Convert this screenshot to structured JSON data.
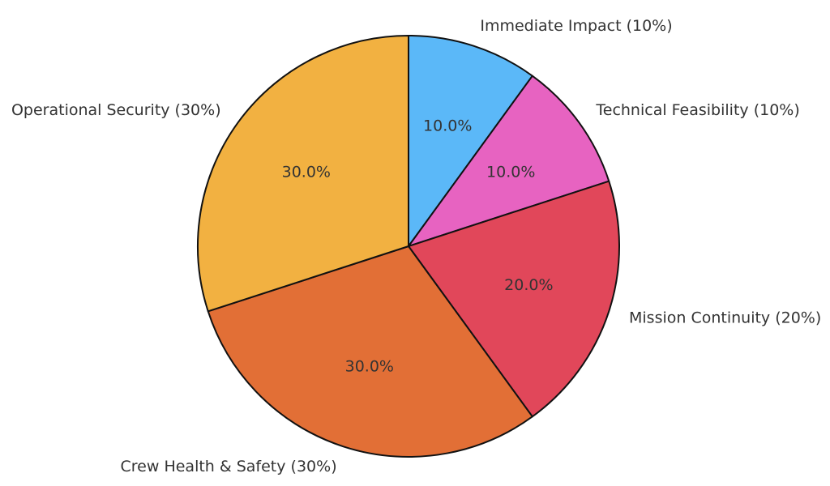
{
  "chart_data": {
    "type": "pie",
    "start_angle_deg": 90,
    "direction": "clockwise",
    "slices": [
      {
        "label": "Immediate Impact (10%)",
        "value": 10,
        "pct_label": "10.0%",
        "color": "#5bb8f8"
      },
      {
        "label": "Technical Feasibility (10%)",
        "value": 10,
        "pct_label": "10.0%",
        "color": "#e763c1"
      },
      {
        "label": "Mission Continuity (20%)",
        "value": 20,
        "pct_label": "20.0%",
        "color": "#e1475a"
      },
      {
        "label": "Crew Health & Safety (30%)",
        "value": 30,
        "pct_label": "30.0%",
        "color": "#e26f36"
      },
      {
        "label": "Operational Security (30%)",
        "value": 30,
        "pct_label": "30.0%",
        "color": "#f2b141"
      }
    ]
  }
}
